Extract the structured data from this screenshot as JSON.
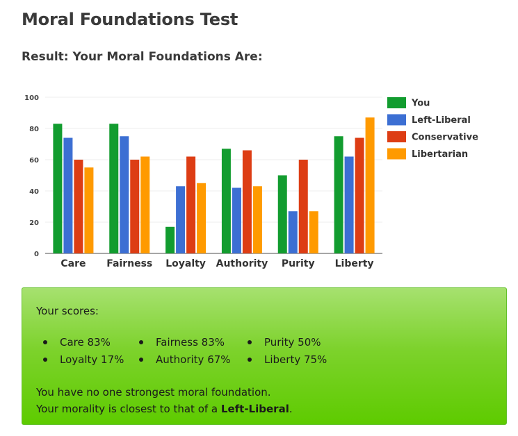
{
  "page": {
    "title": "Moral Foundations Test",
    "result_heading": "Result: Your Moral Foundations Are:"
  },
  "chart_data": {
    "type": "bar",
    "categories": [
      "Care",
      "Fairness",
      "Loyalty",
      "Authority",
      "Purity",
      "Liberty"
    ],
    "ylim": [
      0,
      100
    ],
    "yticks": [
      "0",
      "20",
      "40",
      "60",
      "80",
      "100"
    ],
    "grid": true,
    "legend_position": "right",
    "series": [
      {
        "name": "You",
        "color": "#129c2f",
        "values": [
          83,
          83,
          17,
          67,
          50,
          75
        ]
      },
      {
        "name": "Left-Liberal",
        "color": "#3c6fd3",
        "values": [
          74,
          75,
          43,
          42,
          27,
          62
        ]
      },
      {
        "name": "Conservative",
        "color": "#dd3d14",
        "values": [
          60,
          60,
          62,
          66,
          60,
          74
        ]
      },
      {
        "name": "Libertarian",
        "color": "#ff9a00",
        "values": [
          55,
          62,
          45,
          43,
          27,
          87
        ]
      }
    ]
  },
  "scores": {
    "label": "Your scores:",
    "items": [
      [
        "Care 83%",
        "Loyalty 17%"
      ],
      [
        "Fairness 83%",
        "Authority 67%"
      ],
      [
        "Purity 50%",
        "Liberty 75%"
      ]
    ]
  },
  "summary": {
    "line1": "You have no one strongest moral foundation.",
    "line2_prefix": "Your morality is closest to that of a ",
    "line2_bold": "Left-Liberal",
    "line2_suffix": "."
  },
  "colors": {
    "box_top": "#a6e16f",
    "box_bottom": "#5ecb00"
  }
}
